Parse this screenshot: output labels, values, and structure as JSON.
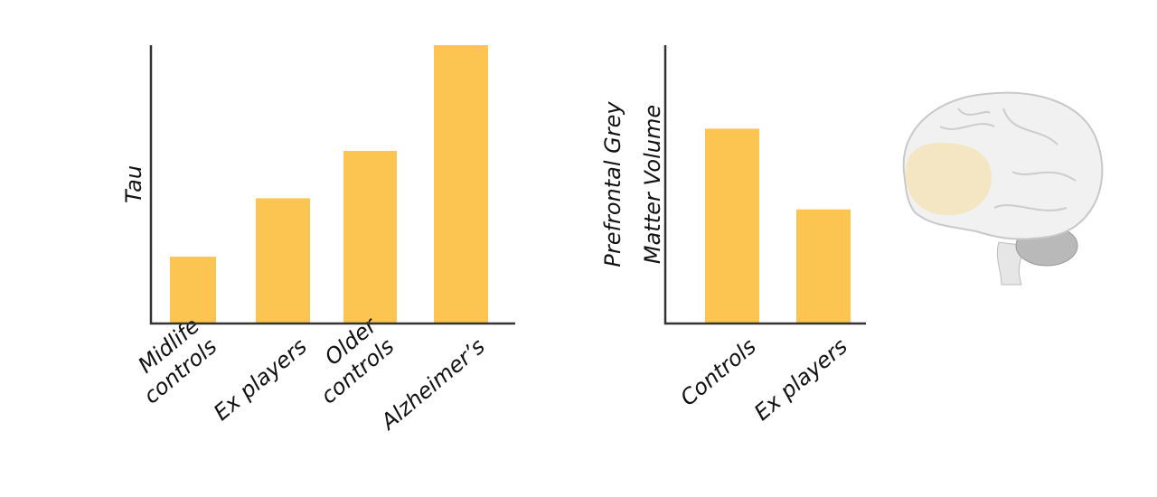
{
  "chart_data": [
    {
      "type": "bar",
      "ylabel": [
        "Tau"
      ],
      "categories": [
        [
          "Midlife",
          "controls"
        ],
        [
          "Ex players"
        ],
        [
          "Older",
          "controls"
        ],
        [
          "Alzheimer’s"
        ]
      ],
      "values": [
        24,
        45,
        62,
        100
      ],
      "color": "#fcc450",
      "ylim": [
        0,
        100
      ]
    },
    {
      "type": "bar",
      "ylabel": [
        "Prefrontal Grey",
        "Matter Volume"
      ],
      "categories": [
        [
          "Controls"
        ],
        [
          "Ex players"
        ]
      ],
      "values": [
        70,
        41
      ],
      "color": "#fcc450",
      "ylim": [
        0,
        100
      ]
    }
  ]
}
